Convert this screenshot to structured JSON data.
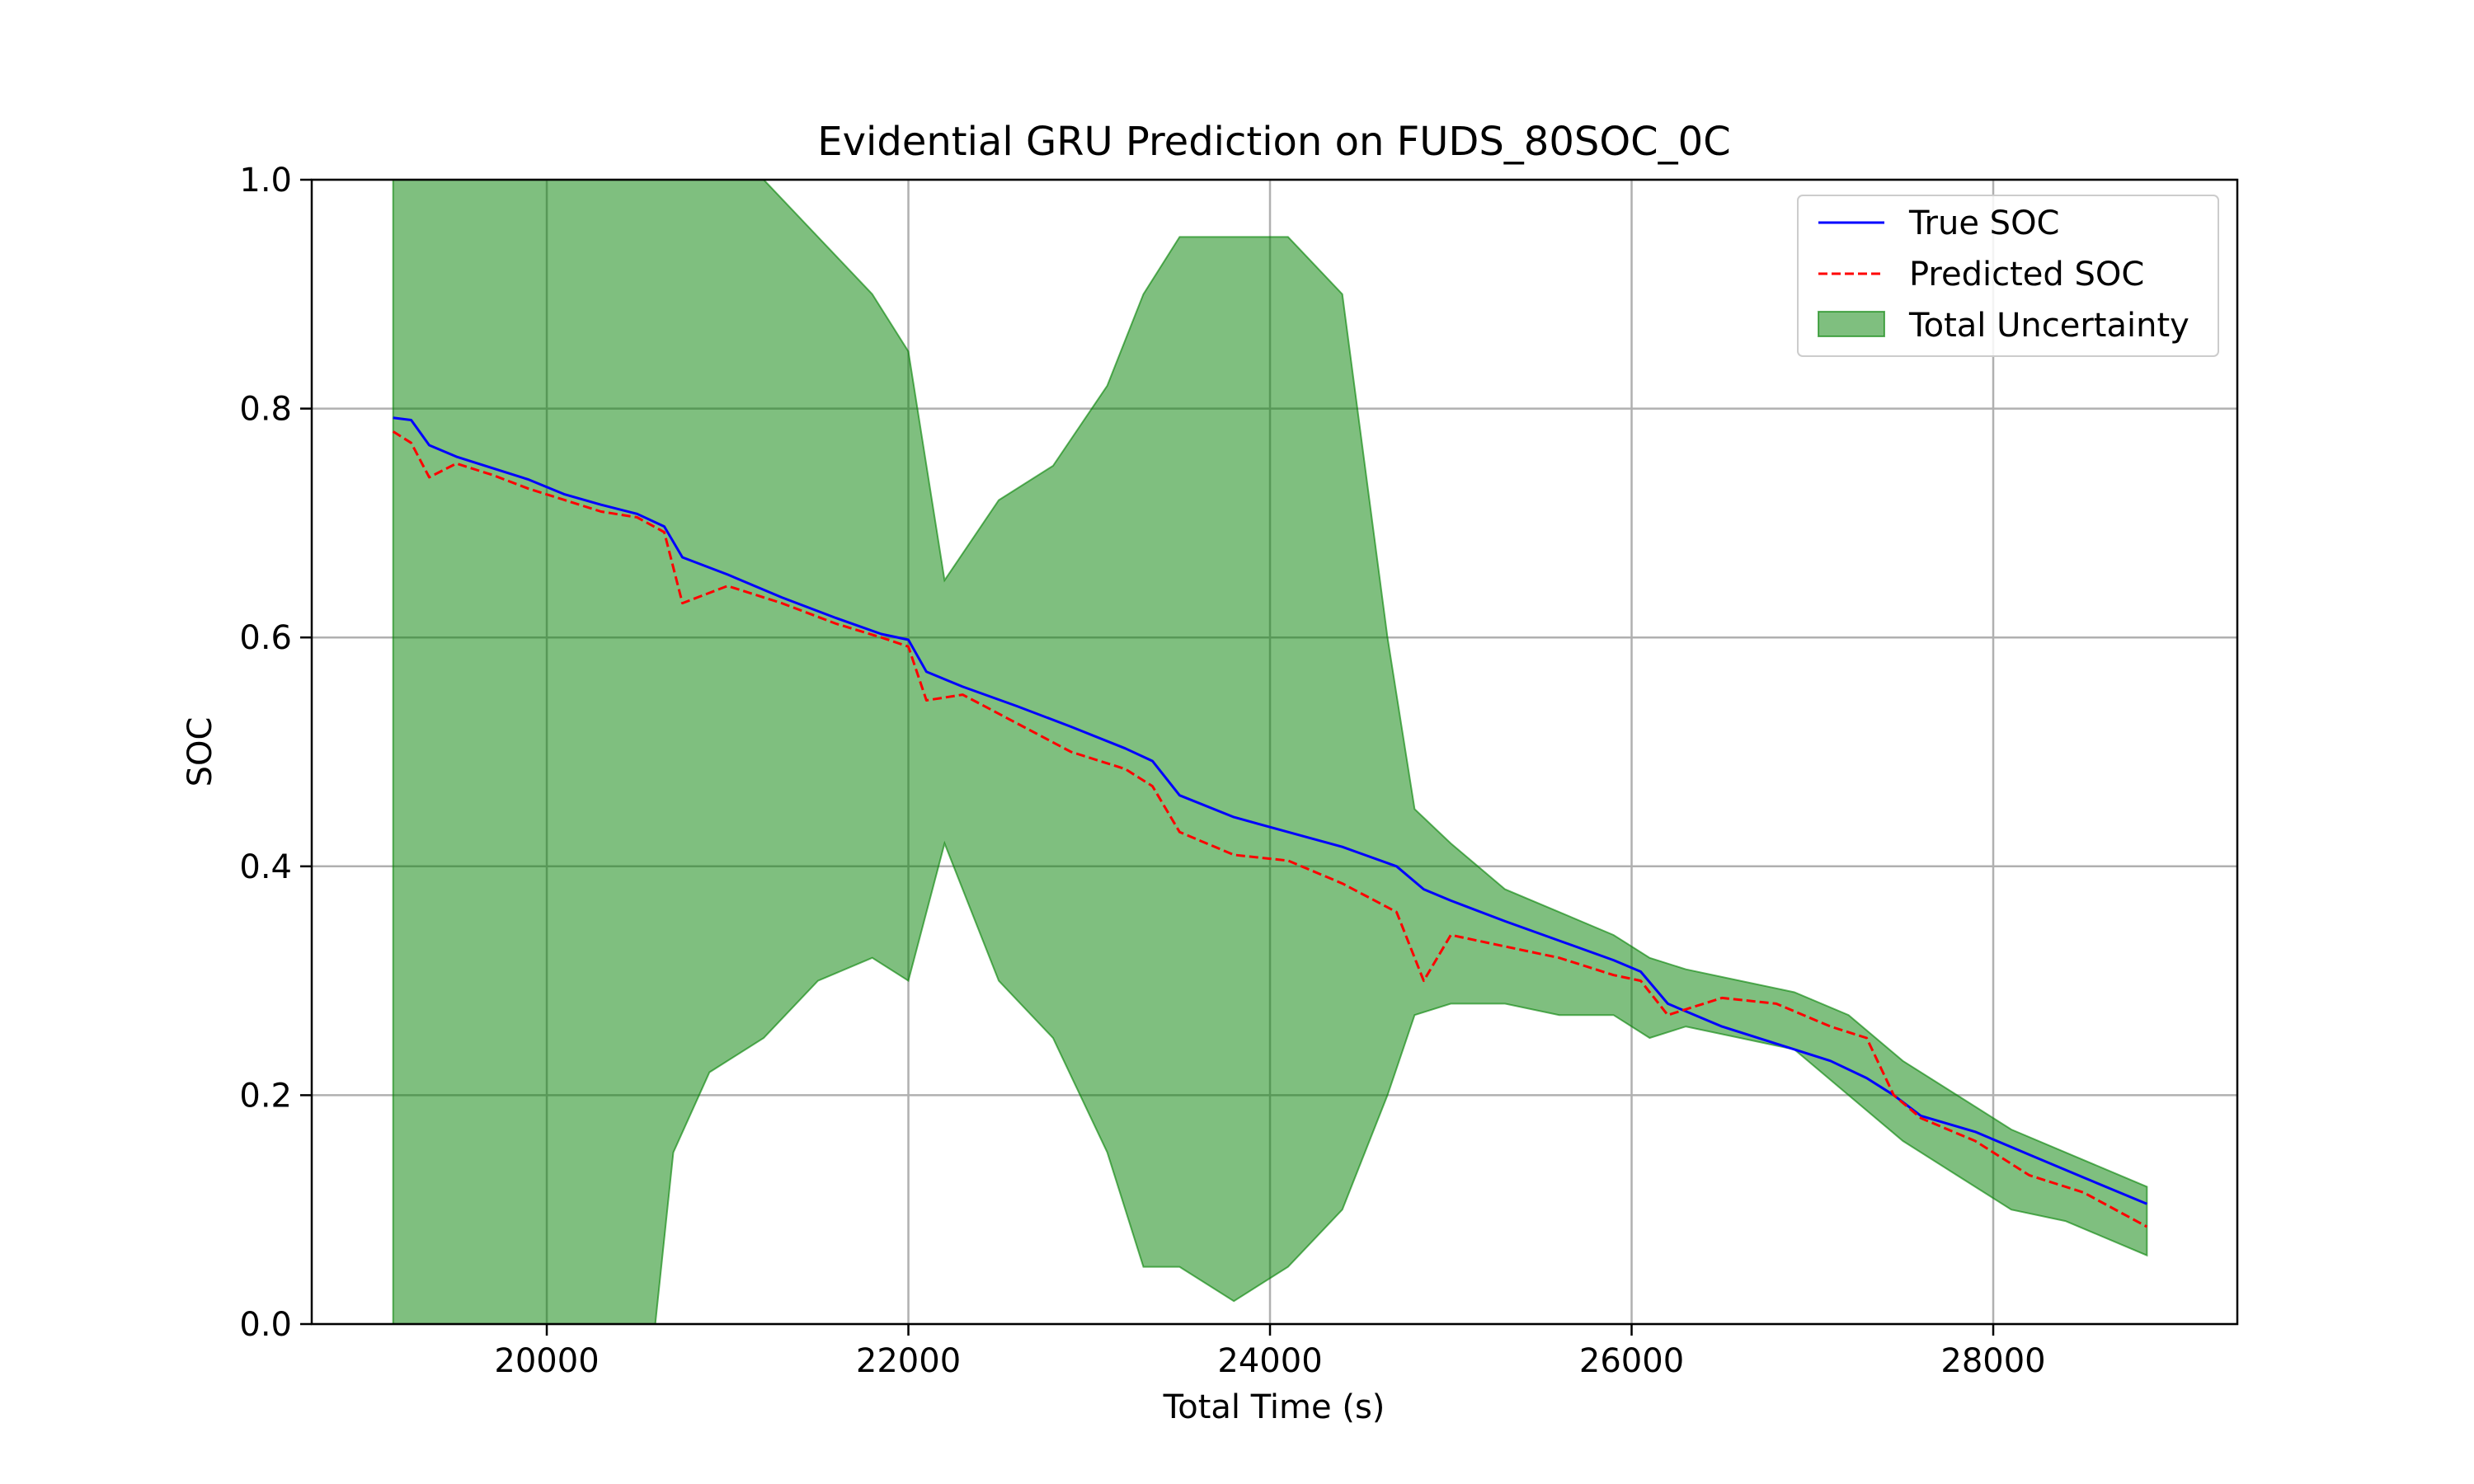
{
  "chart_data": {
    "type": "line",
    "title": "Evidential GRU Prediction on FUDS_80SOC_0C",
    "xlabel": "Total Time (s)",
    "ylabel": "SOC",
    "xlim": [
      18700,
      29350
    ],
    "ylim": [
      0.0,
      1.0
    ],
    "x_ticks": [
      20000,
      22000,
      24000,
      26000,
      28000
    ],
    "x_tick_labels": [
      "20000",
      "22000",
      "24000",
      "26000",
      "28000"
    ],
    "y_ticks": [
      0.0,
      0.2,
      0.4,
      0.6,
      0.8,
      1.0
    ],
    "y_tick_labels": [
      "0.0",
      "0.2",
      "0.4",
      "0.6",
      "0.8",
      "1.0"
    ],
    "grid": true,
    "legend_position": "top-right",
    "colors": {
      "true_soc": "#0000ff",
      "predicted_soc": "#ff0000",
      "uncertainty_fill": "#008000",
      "grid": "#b0b0b0"
    },
    "series": [
      {
        "name": "True SOC",
        "style": "solid",
        "x": [
          19150,
          19250,
          19350,
          19500,
          19700,
          19900,
          20100,
          20300,
          20500,
          20650,
          20750,
          21000,
          21300,
          21600,
          21850,
          22000,
          22100,
          22300,
          22600,
          22900,
          23200,
          23350,
          23500,
          23800,
          24100,
          24400,
          24700,
          24850,
          25000,
          25300,
          25600,
          25900,
          26050,
          26200,
          26500,
          26800,
          27100,
          27300,
          27450,
          27600,
          27900,
          28200,
          28500,
          28850
        ],
        "y": [
          0.792,
          0.79,
          0.768,
          0.758,
          0.748,
          0.738,
          0.725,
          0.716,
          0.708,
          0.697,
          0.67,
          0.655,
          0.635,
          0.617,
          0.603,
          0.598,
          0.57,
          0.557,
          0.54,
          0.522,
          0.503,
          0.492,
          0.462,
          0.443,
          0.43,
          0.417,
          0.4,
          0.38,
          0.37,
          0.352,
          0.335,
          0.318,
          0.308,
          0.28,
          0.26,
          0.245,
          0.23,
          0.215,
          0.2,
          0.182,
          0.168,
          0.148,
          0.128,
          0.105
        ]
      },
      {
        "name": "Predicted SOC",
        "style": "dashed",
        "x": [
          19150,
          19250,
          19350,
          19500,
          19700,
          19900,
          20100,
          20300,
          20500,
          20650,
          20750,
          21000,
          21300,
          21600,
          21850,
          22000,
          22100,
          22300,
          22600,
          22900,
          23200,
          23350,
          23500,
          23800,
          24100,
          24400,
          24700,
          24850,
          25000,
          25300,
          25600,
          25900,
          26050,
          26200,
          26500,
          26800,
          27100,
          27300,
          27450,
          27600,
          27900,
          28200,
          28500,
          28850
        ],
        "y": [
          0.78,
          0.77,
          0.74,
          0.752,
          0.742,
          0.73,
          0.72,
          0.71,
          0.705,
          0.692,
          0.63,
          0.645,
          0.63,
          0.612,
          0.6,
          0.592,
          0.545,
          0.55,
          0.525,
          0.5,
          0.485,
          0.47,
          0.43,
          0.41,
          0.405,
          0.385,
          0.36,
          0.3,
          0.34,
          0.33,
          0.32,
          0.305,
          0.3,
          0.27,
          0.285,
          0.28,
          0.26,
          0.25,
          0.2,
          0.18,
          0.16,
          0.13,
          0.115,
          0.085
        ]
      }
    ],
    "uncertainty": {
      "name": "Total Uncertainty",
      "x": [
        19150,
        19300,
        19600,
        20000,
        20400,
        20600,
        20700,
        20900,
        21200,
        21500,
        21800,
        22000,
        22200,
        22500,
        22800,
        23100,
        23300,
        23500,
        23800,
        24100,
        24400,
        24650,
        24800,
        25000,
        25300,
        25600,
        25900,
        26100,
        26300,
        26600,
        26900,
        27200,
        27500,
        27800,
        28100,
        28400,
        28700,
        28850
      ],
      "lower": [
        0.0,
        0.0,
        0.0,
        0.0,
        0.0,
        0.0,
        0.15,
        0.22,
        0.25,
        0.3,
        0.32,
        0.3,
        0.42,
        0.3,
        0.25,
        0.15,
        0.05,
        0.05,
        0.02,
        0.05,
        0.1,
        0.2,
        0.27,
        0.28,
        0.28,
        0.27,
        0.27,
        0.25,
        0.26,
        0.25,
        0.24,
        0.2,
        0.16,
        0.13,
        0.1,
        0.09,
        0.07,
        0.06
      ],
      "upper": [
        1.0,
        1.0,
        1.0,
        1.0,
        1.0,
        1.0,
        1.0,
        1.0,
        1.0,
        0.95,
        0.9,
        0.85,
        0.65,
        0.72,
        0.75,
        0.82,
        0.9,
        0.95,
        0.95,
        0.95,
        0.9,
        0.6,
        0.45,
        0.42,
        0.38,
        0.36,
        0.34,
        0.32,
        0.31,
        0.3,
        0.29,
        0.27,
        0.23,
        0.2,
        0.17,
        0.15,
        0.13,
        0.12
      ]
    }
  }
}
